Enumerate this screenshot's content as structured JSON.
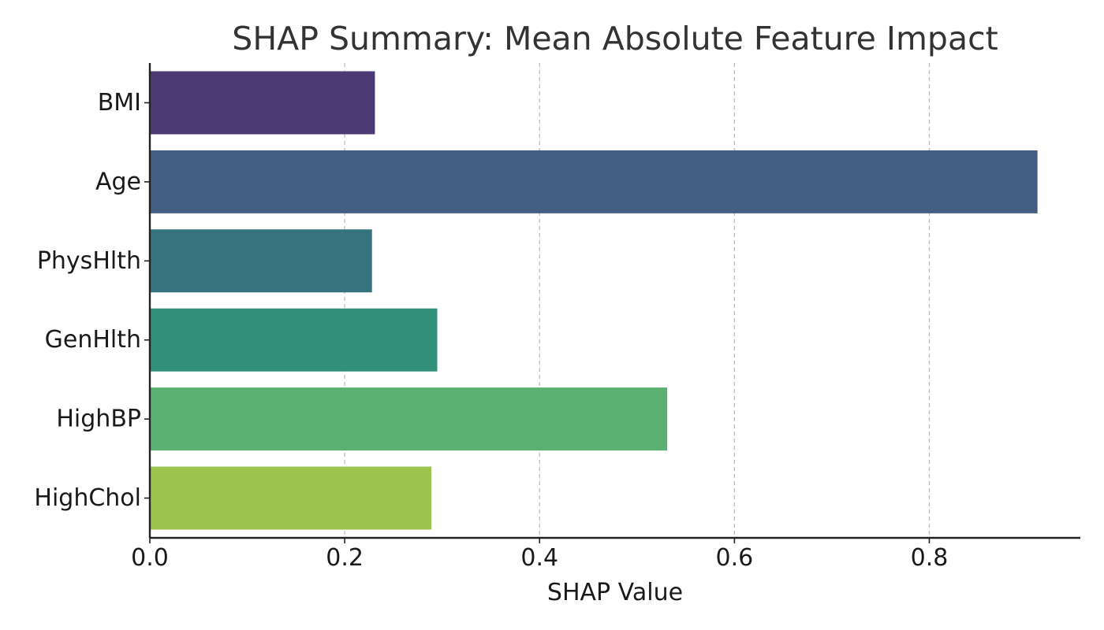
{
  "chart_data": {
    "type": "bar",
    "orientation": "horizontal",
    "title": "SHAP Summary: Mean Absolute Feature Impact",
    "xlabel": "SHAP Value",
    "ylabel": "",
    "categories": [
      "BMI",
      "Age",
      "PhysHlth",
      "GenHlth",
      "HighBP",
      "HighChol"
    ],
    "values": [
      0.231,
      0.911,
      0.228,
      0.295,
      0.531,
      0.289
    ],
    "colors": [
      "#4b3a74",
      "#425e80",
      "#35747e",
      "#31907c",
      "#5bb172",
      "#9bc54e"
    ],
    "xlim": [
      0,
      0.955
    ],
    "xticks": [
      0.0,
      0.2,
      0.4,
      0.6,
      0.8
    ],
    "xtick_labels": [
      "0.0",
      "0.2",
      "0.4",
      "0.6",
      "0.8"
    ],
    "grid": "x-dashed",
    "legend": "none"
  }
}
